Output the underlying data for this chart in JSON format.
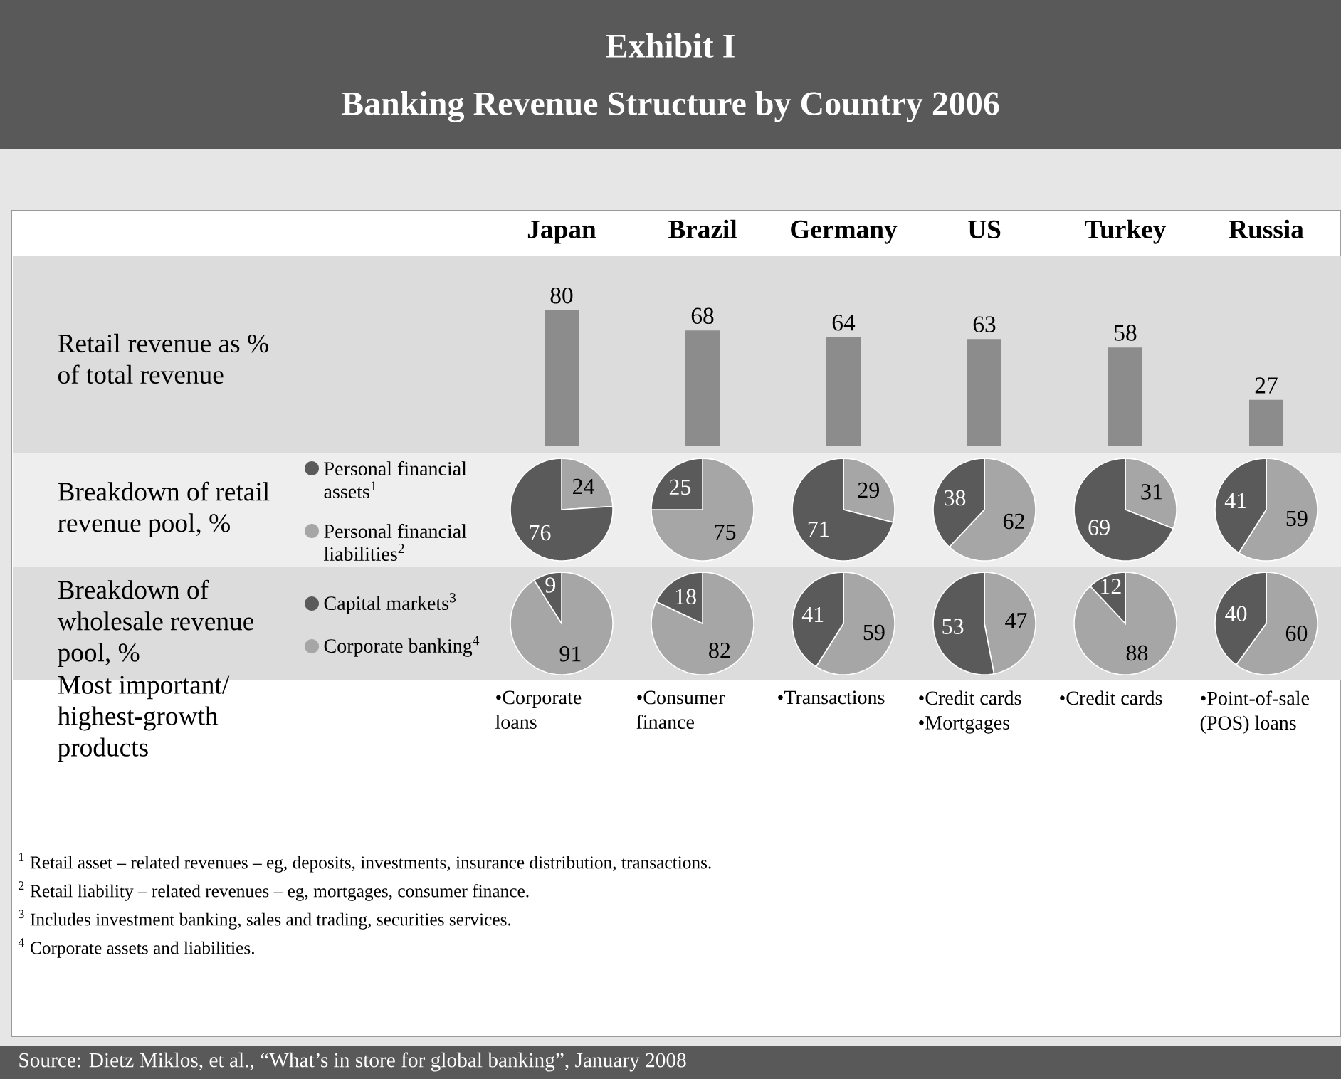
{
  "chart_data": [
    {
      "type": "bar",
      "title": "Exhibit I",
      "subtitle": "Banking Revenue Structure by Country 2006",
      "ylabel": "Retail revenue as % of total revenue",
      "categories": [
        "Japan",
        "Brazil",
        "Germany",
        "US",
        "Turkey",
        "Russia"
      ],
      "values": [
        80,
        68,
        64,
        63,
        58,
        27
      ],
      "color": "#8c8c8c",
      "data_labels": true,
      "annotations": [
        "$^{1}$ Retail asset – related revenues – eg, deposits, investments, insurance distribution, transactions.",
        "$^{2}$ Retail liability – related revenues – eg, mortgages, consumer finance.",
        "$^{3}$ Includes investment banking, sales and trading, securities services.",
        "$^{4}$ Corporate assets and liabilities.",
        "Source: Dietz Miklos, et al., “What’s in store for global banking”, January 2008"
      ]
    },
    {
      "type": "pie",
      "title": "Breakdown of retail revenue pool, %",
      "categories": [
        "Personal financial assets$^{1}$",
        "Personal financial liabilities$^{2}$"
      ],
      "values": [
        76,
        24
      ],
      "colors": [
        "#5a5a5a",
        "#a6a6a6"
      ],
      "data_labels": true,
      "legend": "left"
    },
    {
      "type": "pie",
      "categories": [
        null,
        null
      ],
      "values": [
        25,
        75
      ],
      "colors": [
        "#5a5a5a",
        "#a6a6a6"
      ],
      "data_labels": true
    },
    {
      "type": "pie",
      "categories": [
        null,
        null
      ],
      "values": [
        71,
        29
      ],
      "colors": [
        "#5a5a5a",
        "#a6a6a6"
      ],
      "data_labels": true
    },
    {
      "type": "pie",
      "categories": [
        null,
        null
      ],
      "values": [
        38,
        62
      ],
      "colors": [
        "#5a5a5a",
        "#a6a6a6"
      ],
      "data_labels": true
    },
    {
      "type": "pie",
      "categories": [
        null,
        null
      ],
      "values": [
        69,
        31
      ],
      "colors": [
        "#5a5a5a",
        "#a6a6a6"
      ],
      "data_labels": true
    },
    {
      "type": "pie",
      "categories": [
        null,
        null
      ],
      "values": [
        41,
        59
      ],
      "colors": [
        "#5a5a5a",
        "#a6a6a6"
      ],
      "data_labels": true
    },
    {
      "type": "pie",
      "title": "Breakdown of wholesale revenue pool, %",
      "categories": [
        "Capital markets$^{3}$",
        "Corporate banking$^{4}$"
      ],
      "values": [
        9,
        91
      ],
      "colors": [
        "#5a5a5a",
        "#a6a6a6"
      ],
      "data_labels": true,
      "legend": "left"
    },
    {
      "type": "pie",
      "categories": [
        null,
        null
      ],
      "values": [
        18,
        82
      ],
      "colors": [
        "#5a5a5a",
        "#a6a6a6"
      ],
      "data_labels": true
    },
    {
      "type": "pie",
      "categories": [
        null,
        null
      ],
      "values": [
        41,
        59
      ],
      "colors": [
        "#5a5a5a",
        "#a6a6a6"
      ],
      "data_labels": true
    },
    {
      "type": "pie",
      "categories": [
        null,
        null
      ],
      "values": [
        53,
        47
      ],
      "colors": [
        "#5a5a5a",
        "#a6a6a6"
      ],
      "data_labels": true
    },
    {
      "type": "pie",
      "categories": [
        null,
        null
      ],
      "values": [
        12,
        88
      ],
      "colors": [
        "#5a5a5a",
        "#a6a6a6"
      ],
      "data_labels": true
    },
    {
      "type": "pie",
      "categories": [
        null,
        null
      ],
      "values": [
        40,
        60
      ],
      "colors": [
        "#5a5a5a",
        "#a6a6a6"
      ],
      "data_labels": true
    },
    {
      "type": "other",
      "title": "Most important/ highest-growth products",
      "categories": [
        "•Corporate loans",
        "•Consumer finance",
        "•Transactions",
        "•Credit cards •Mortgages",
        "•Credit cards",
        "•Point-of-sale (POS) loans"
      ]
    }
  ]
}
